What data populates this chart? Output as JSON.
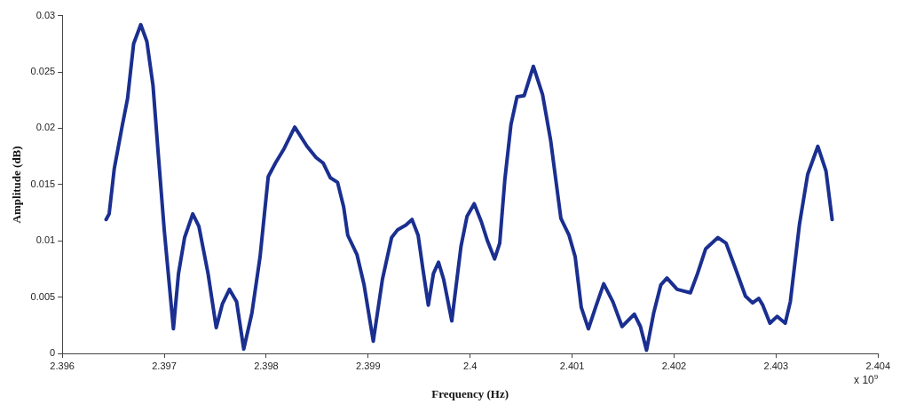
{
  "chart_data": {
    "type": "line",
    "xlabel": "Frequency (Hz)",
    "ylabel": "Amplitude (dB)",
    "annotations": [
      "x 10$^{9}$"
    ],
    "x": [
      2.39643,
      2.39646,
      2.39651,
      2.39659,
      2.39664,
      2.3967,
      2.39677,
      2.39683,
      2.39689,
      2.39694,
      2.397,
      2.39709,
      2.39714,
      2.3972,
      2.39728,
      2.39734,
      2.39743,
      2.39751,
      2.39757,
      2.39764,
      2.39771,
      2.39778,
      2.39786,
      2.39794,
      2.39802,
      2.39809,
      2.39817,
      2.39828,
      2.3984,
      2.39849,
      2.39856,
      2.39863,
      2.3987,
      2.39876,
      2.3988,
      2.39889,
      2.39896,
      2.39905,
      2.39914,
      2.39923,
      2.39929,
      2.39937,
      2.39943,
      2.39949,
      2.39954,
      2.39959,
      2.39964,
      2.39969,
      2.39974,
      2.39982,
      2.39991,
      2.39997,
      2.40004,
      2.40011,
      2.40017,
      2.40024,
      2.40029,
      2.40034,
      2.4004,
      2.40046,
      2.40053,
      2.40062,
      2.40071,
      2.40079,
      2.40089,
      2.40097,
      2.40103,
      2.40109,
      2.40116,
      2.40123,
      2.40131,
      2.4014,
      2.40149,
      2.40161,
      2.40167,
      2.40173,
      2.4018,
      2.40187,
      2.40193,
      2.40203,
      2.40216,
      2.40223,
      2.40231,
      2.40243,
      2.40251,
      2.4026,
      2.4027,
      2.40277,
      2.40283,
      2.40287,
      2.40294,
      2.40301,
      2.40309,
      2.40314,
      2.40323,
      2.40331,
      2.40341,
      2.40349,
      2.40355
    ],
    "series": [
      {
        "color": "#1a2f8f",
        "values": [
          0.0119,
          0.0124,
          0.0164,
          0.0203,
          0.0226,
          0.0275,
          0.0292,
          0.0277,
          0.0238,
          0.0179,
          0.011,
          0.0022,
          0.0071,
          0.0103,
          0.0124,
          0.0113,
          0.0071,
          0.0023,
          0.0044,
          0.0057,
          0.0046,
          0.0004,
          0.0036,
          0.0086,
          0.0157,
          0.0169,
          0.0181,
          0.0201,
          0.0184,
          0.0174,
          0.0169,
          0.0156,
          0.0152,
          0.013,
          0.0105,
          0.0088,
          0.0061,
          0.0011,
          0.0066,
          0.0103,
          0.011,
          0.0114,
          0.0119,
          0.0105,
          0.0073,
          0.0043,
          0.0071,
          0.0081,
          0.0066,
          0.0029,
          0.0095,
          0.0122,
          0.0133,
          0.0117,
          0.01,
          0.0084,
          0.0098,
          0.0154,
          0.0203,
          0.0228,
          0.0229,
          0.0255,
          0.023,
          0.0189,
          0.012,
          0.0105,
          0.0086,
          0.0041,
          0.0022,
          0.0041,
          0.0062,
          0.0046,
          0.0024,
          0.0035,
          0.0024,
          0.0003,
          0.0036,
          0.0061,
          0.0067,
          0.0057,
          0.0054,
          0.0071,
          0.0093,
          0.0103,
          0.0098,
          0.0076,
          0.0051,
          0.0045,
          0.0049,
          0.0043,
          0.0027,
          0.0033,
          0.0027,
          0.0046,
          0.0115,
          0.0159,
          0.0184,
          0.0162,
          0.0119
        ]
      }
    ],
    "xlim": [
      2.396,
      2.404
    ],
    "xticks": [
      2.396,
      2.397,
      2.398,
      2.399,
      2.4,
      2.401,
      2.402,
      2.403,
      2.404
    ],
    "ylim": [
      0,
      0.03
    ],
    "yticks": [
      0,
      0.005,
      0.01,
      0.015,
      0.02,
      0.025,
      0.03
    ],
    "grid": false,
    "legend": false,
    "marker": "none",
    "line_style": "solid"
  }
}
